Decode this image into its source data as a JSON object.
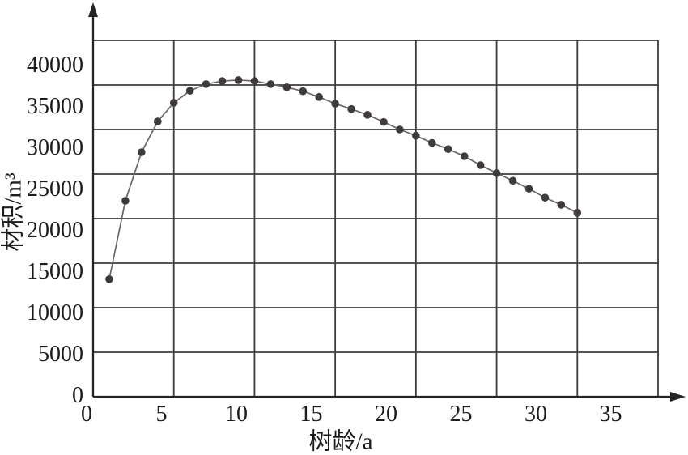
{
  "chart_data": {
    "type": "line",
    "title": "",
    "xlabel": "树龄/a",
    "ylabel": "材积/m³",
    "x_ticks": [
      0,
      5,
      10,
      15,
      20,
      25,
      30,
      35
    ],
    "x_tick_labels": [
      "0",
      "5",
      "10",
      "15",
      "20",
      "25",
      "30",
      "35"
    ],
    "y_ticks": [
      0,
      5000,
      10000,
      15000,
      20000,
      25000,
      30000,
      35000,
      40000
    ],
    "y_tick_labels": [
      "0",
      "5000",
      "10000",
      "15000",
      "20000",
      "25000",
      "30000",
      "35000",
      "40000"
    ],
    "xlim": [
      0,
      35
    ],
    "ylim": [
      0,
      40000
    ],
    "grid": true,
    "legend": "none",
    "marker": "filled-circle",
    "points": [
      [
        1,
        13200
      ],
      [
        2,
        22000
      ],
      [
        3,
        27450
      ],
      [
        4,
        30900
      ],
      [
        5,
        33000
      ],
      [
        6,
        34350
      ],
      [
        7,
        35100
      ],
      [
        8,
        35450
      ],
      [
        9,
        35550
      ],
      [
        10,
        35450
      ],
      [
        11,
        35100
      ],
      [
        12,
        34750
      ],
      [
        13,
        34300
      ],
      [
        14,
        33650
      ],
      [
        15,
        32900
      ],
      [
        16,
        32300
      ],
      [
        17,
        31650
      ],
      [
        18,
        30850
      ],
      [
        19,
        30000
      ],
      [
        20,
        29300
      ],
      [
        21,
        28500
      ],
      [
        22,
        27800
      ],
      [
        23,
        27000
      ],
      [
        24,
        26000
      ],
      [
        25,
        25100
      ],
      [
        26,
        24250
      ],
      [
        27,
        23350
      ],
      [
        28,
        22350
      ],
      [
        29,
        21550
      ],
      [
        30,
        20650
      ]
    ]
  },
  "colors": {
    "background": "#ffffff",
    "grid_line": "#3c3c3c",
    "axis_line": "#262323",
    "curve_line": "#6b6665",
    "point_fill": "#403b3b",
    "text": "#1e1b1b"
  }
}
